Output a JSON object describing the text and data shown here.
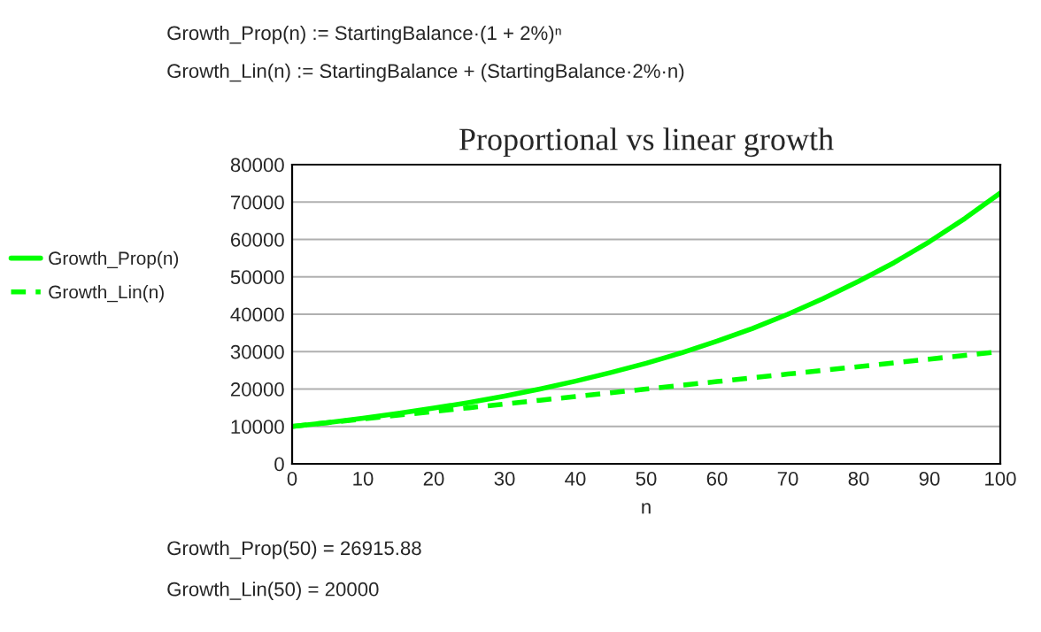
{
  "chart_data": {
    "type": "line",
    "title": "Proportional vs linear growth",
    "xlabel": "n",
    "x": [
      0,
      5,
      10,
      15,
      20,
      25,
      30,
      35,
      40,
      45,
      50,
      55,
      60,
      65,
      70,
      75,
      80,
      85,
      90,
      95,
      100
    ],
    "series": [
      {
        "name": "Growth_Prop(n)",
        "color": "#00ff00",
        "line_style": "solid",
        "values": [
          10000,
          11000,
          12200,
          13500,
          14900,
          16400,
          18100,
          20000,
          22100,
          24400,
          26900,
          29700,
          32800,
          36200,
          40000,
          44200,
          48800,
          53800,
          59400,
          65600,
          72400
        ]
      },
      {
        "name": "Growth_Lin(n)",
        "color": "#00ff00",
        "line_style": "dashed",
        "values": [
          10000,
          11000,
          12000,
          13000,
          14000,
          15000,
          16000,
          17000,
          18000,
          19000,
          20000,
          21000,
          22000,
          23000,
          24000,
          25000,
          26000,
          27000,
          28000,
          29000,
          30000
        ]
      }
    ],
    "xlim": [
      0,
      100
    ],
    "xticks": [
      0,
      10,
      20,
      30,
      40,
      50,
      60,
      70,
      80,
      90,
      100
    ],
    "ylim": [
      0,
      80000
    ],
    "yticks": [
      0,
      10000,
      20000,
      30000,
      40000,
      50000,
      60000,
      70000,
      80000
    ],
    "grid": "y",
    "legend": "left",
    "marker": "none",
    "annotations": [
      "Growth_Prop(n) := StartingBalance·(1 + 2%)ⁿ",
      "Growth_Lin(n) := StartingBalance + (StartingBalance·2%·n)",
      "Growth_Prop(50) = 26915.88",
      "Growth_Lin(50) = 20000"
    ]
  }
}
